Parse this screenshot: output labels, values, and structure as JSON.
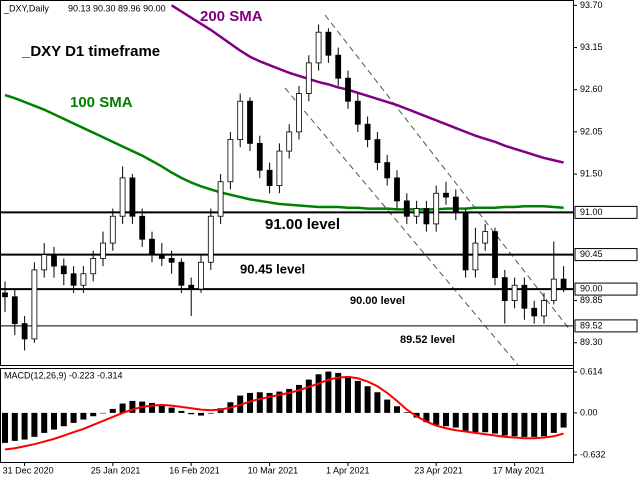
{
  "header": {
    "symbol": "_DXY,Daily",
    "ohlc": "90.13 90.30 89.96 90.00"
  },
  "chart_data": [
    {
      "type": "candlestick",
      "title": "_DXY D1 timeframe",
      "categories": [
        null,
        null,
        "31 Dec 2020",
        null,
        null,
        null,
        null,
        null,
        null,
        null,
        null,
        "25 Jan 2021",
        null,
        null,
        null,
        null,
        null,
        null,
        null,
        "16 Feb 2021",
        null,
        null,
        null,
        null,
        null,
        null,
        null,
        "10 Mar 2021",
        null,
        null,
        null,
        null,
        null,
        null,
        null,
        "1 Apr 2021",
        null,
        null,
        null,
        null,
        null,
        null,
        null,
        null,
        "23 Apr 2021",
        null,
        null,
        null,
        null,
        null,
        null,
        null,
        "17 May 2021",
        null,
        null,
        null,
        null,
        null
      ],
      "open": [
        89.95,
        89.9,
        89.55,
        89.35,
        90.25,
        90.45,
        90.3,
        90.2,
        90.05,
        90.2,
        90.4,
        90.6,
        90.95,
        91.45,
        90.95,
        90.65,
        90.45,
        90.4,
        90.35,
        90.05,
        90.0,
        90.35,
        90.95,
        91.4,
        91.95,
        92.45,
        91.9,
        91.55,
        91.35,
        91.8,
        92.05,
        92.55,
        92.95,
        93.35,
        93.05,
        92.75,
        92.45,
        92.15,
        91.95,
        91.65,
        91.45,
        91.15,
        90.95,
        91.05,
        90.85,
        91.25,
        91.2,
        91.0,
        90.25,
        90.6,
        90.75,
        90.15,
        89.85,
        90.05,
        89.75,
        89.65,
        89.85,
        90.13
      ],
      "high": [
        90.1,
        90.0,
        89.65,
        90.35,
        90.6,
        90.55,
        90.4,
        90.3,
        90.3,
        90.5,
        90.75,
        91.05,
        91.6,
        91.5,
        91.05,
        90.75,
        90.6,
        90.5,
        90.4,
        90.15,
        90.45,
        91.05,
        91.5,
        92.05,
        92.55,
        92.5,
        92.0,
        91.65,
        91.9,
        92.15,
        92.65,
        93.05,
        93.45,
        93.4,
        93.15,
        92.85,
        92.55,
        92.25,
        92.05,
        91.75,
        91.55,
        91.25,
        91.15,
        91.15,
        91.35,
        91.4,
        91.3,
        91.05,
        90.8,
        90.85,
        90.8,
        90.25,
        90.15,
        90.15,
        89.85,
        89.95,
        90.62,
        90.3
      ],
      "low": [
        89.7,
        89.4,
        89.2,
        89.3,
        90.15,
        90.15,
        90.05,
        89.95,
        89.95,
        90.1,
        90.3,
        90.5,
        90.85,
        90.85,
        90.55,
        90.35,
        90.3,
        90.2,
        89.95,
        89.65,
        89.95,
        90.25,
        90.85,
        91.3,
        91.85,
        91.8,
        91.45,
        91.25,
        91.25,
        91.7,
        91.95,
        92.45,
        92.85,
        92.95,
        92.65,
        92.35,
        92.05,
        91.85,
        91.55,
        91.35,
        91.05,
        90.85,
        90.85,
        90.75,
        90.75,
        91.1,
        90.9,
        90.15,
        90.15,
        90.5,
        90.05,
        89.55,
        89.75,
        89.6,
        89.55,
        89.55,
        89.8,
        89.96
      ],
      "close": [
        89.9,
        89.55,
        89.35,
        90.25,
        90.45,
        90.3,
        90.2,
        90.05,
        90.2,
        90.4,
        90.6,
        90.95,
        91.45,
        90.95,
        90.65,
        90.45,
        90.4,
        90.35,
        90.05,
        90.0,
        90.35,
        90.95,
        91.4,
        91.95,
        92.45,
        91.9,
        91.55,
        91.35,
        91.8,
        92.05,
        92.55,
        92.95,
        93.35,
        93.05,
        92.75,
        92.45,
        92.15,
        91.95,
        91.65,
        91.45,
        91.15,
        90.95,
        91.05,
        90.85,
        91.25,
        91.2,
        91.0,
        90.25,
        90.6,
        90.75,
        90.15,
        89.85,
        90.05,
        89.75,
        89.65,
        89.85,
        90.13,
        90.0
      ],
      "up_color": "#ffffff",
      "down_color": "#000000",
      "series": [
        {
          "name": "100 SMA",
          "color": "#008000",
          "values": [
            92.53,
            92.49,
            92.44,
            92.39,
            92.34,
            92.28,
            92.22,
            92.16,
            92.1,
            92.04,
            91.98,
            91.92,
            91.86,
            91.8,
            91.74,
            91.67,
            91.6,
            91.52,
            91.45,
            91.39,
            91.34,
            91.3,
            91.26,
            91.23,
            91.2,
            91.17,
            91.15,
            91.13,
            91.11,
            91.1,
            91.09,
            91.08,
            91.07,
            91.07,
            91.07,
            91.06,
            91.06,
            91.05,
            91.05,
            91.05,
            91.04,
            91.04,
            91.04,
            91.04,
            91.04,
            91.05,
            91.05,
            91.05,
            91.06,
            91.06,
            91.06,
            91.07,
            91.07,
            91.08,
            91.08,
            91.08,
            91.07,
            91.06
          ]
        },
        {
          "name": "200 SMA",
          "color": "#800080",
          "values": [
            null,
            null,
            null,
            null,
            null,
            null,
            null,
            null,
            null,
            null,
            null,
            null,
            null,
            null,
            null,
            null,
            null,
            93.7,
            93.62,
            93.54,
            93.46,
            93.38,
            93.29,
            93.2,
            93.11,
            93.03,
            92.97,
            92.92,
            92.87,
            92.82,
            92.78,
            92.74,
            92.7,
            92.67,
            92.63,
            92.6,
            92.56,
            92.52,
            92.48,
            92.44,
            92.4,
            92.35,
            92.3,
            92.25,
            92.2,
            92.15,
            92.1,
            92.05,
            92.0,
            91.96,
            91.92,
            91.87,
            91.83,
            91.79,
            91.75,
            91.71,
            91.68,
            91.65
          ]
        }
      ],
      "levels": [
        {
          "value": 91,
          "label": "91.00",
          "text": "91.00 level"
        },
        {
          "value": 90.45,
          "label": "90.45",
          "text": "90.45 level"
        },
        {
          "value": 90,
          "label": "90.00",
          "text": "90.00 level"
        },
        {
          "value": 89.52,
          "label": "89.52",
          "text": "89.52 level"
        }
      ],
      "ylim": [
        89.01,
        93.77
      ],
      "yticks": [
        {
          "value": 93.7,
          "label": "93.70"
        },
        93.15,
        {
          "value": 92.6,
          "label": "92.60"
        },
        92.05,
        {
          "value": 91.5,
          "label": "91.50"
        },
        89.85,
        {
          "value": 89.3,
          "label": "89.30"
        }
      ]
    },
    {
      "type": "macd",
      "title": "MACD(12,26,9) -0.223 -0.314",
      "values": [
        -0.45,
        -0.42,
        -0.4,
        -0.36,
        -0.3,
        -0.25,
        -0.2,
        -0.15,
        -0.1,
        -0.05,
        0.0,
        0.06,
        0.14,
        0.18,
        0.17,
        0.15,
        0.12,
        0.08,
        0.03,
        -0.02,
        -0.04,
        -0.01,
        0.07,
        0.16,
        0.26,
        0.3,
        0.31,
        0.3,
        0.32,
        0.36,
        0.42,
        0.5,
        0.58,
        0.62,
        0.6,
        0.55,
        0.48,
        0.4,
        0.31,
        0.2,
        0.1,
        0.01,
        -0.07,
        -0.14,
        -0.18,
        -0.2,
        -0.22,
        -0.27,
        -0.29,
        -0.29,
        -0.31,
        -0.34,
        -0.35,
        -0.36,
        -0.36,
        -0.35,
        -0.3,
        -0.22
      ],
      "color": "#000000",
      "series": [
        {
          "color": "#ff0000",
          "values": [
            -0.55,
            -0.53,
            -0.5,
            -0.47,
            -0.43,
            -0.39,
            -0.34,
            -0.29,
            -0.24,
            -0.18,
            -0.12,
            -0.06,
            0.0,
            0.05,
            0.09,
            0.11,
            0.12,
            0.11,
            0.09,
            0.07,
            0.05,
            0.04,
            0.05,
            0.08,
            0.12,
            0.17,
            0.21,
            0.24,
            0.27,
            0.3,
            0.34,
            0.39,
            0.44,
            0.5,
            0.53,
            0.54,
            0.52,
            0.47,
            0.4,
            0.3,
            0.18,
            0.05,
            -0.05,
            -0.13,
            -0.19,
            -0.23,
            -0.26,
            -0.28,
            -0.3,
            -0.32,
            -0.34,
            -0.36,
            -0.37,
            -0.38,
            -0.38,
            -0.37,
            -0.35,
            -0.31
          ]
        }
      ],
      "ylim": [
        -0.737,
        0.674
      ],
      "yticks": [
        0.614,
        {
          "value": 0,
          "label": "0.00"
        },
        -0.632
      ]
    }
  ]
}
